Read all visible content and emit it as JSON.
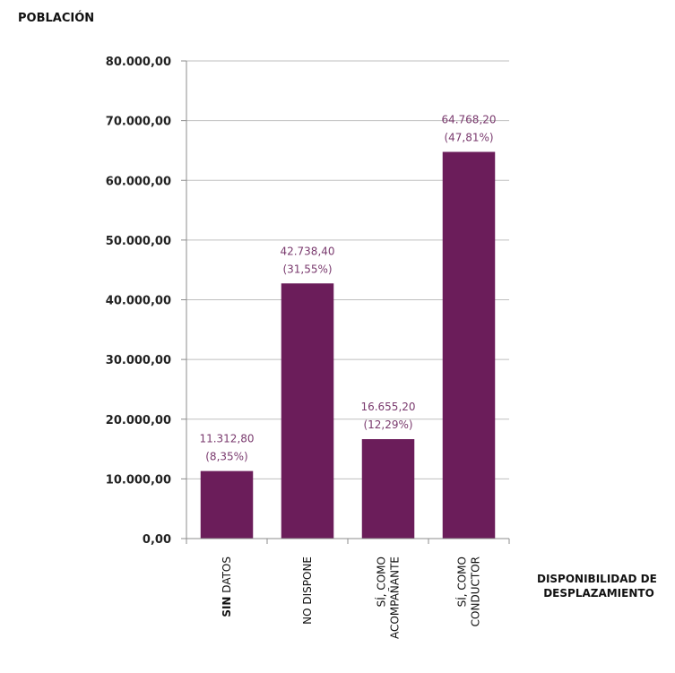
{
  "chart_data": {
    "type": "bar",
    "ylabel": "POBLACIÓN",
    "xlabel_lines": [
      "DISPONIBILIDAD DE",
      "DESPLAZAMIENTO"
    ],
    "categories": [
      {
        "parts": [
          {
            "text": "SIN",
            "bold": true
          },
          {
            "text": " DATOS",
            "bold": false
          }
        ]
      },
      {
        "parts": [
          {
            "text": "NO DISPONE",
            "bold": false
          }
        ]
      },
      {
        "parts": [
          {
            "text": "SÍ, COMO",
            "bold": false
          }
        ],
        "parts2": [
          {
            "text": "ACOMPAÑANTE",
            "bold": false
          }
        ]
      },
      {
        "parts": [
          {
            "text": "SÍ, COMO",
            "bold": false
          }
        ],
        "parts2": [
          {
            "text": "CONDUCTOR",
            "bold": false
          }
        ]
      }
    ],
    "values": [
      11312.8,
      42738.4,
      16655.2,
      64768.2
    ],
    "value_labels": [
      "11.312,80",
      "42.738,40",
      "16.655,20",
      "64.768,20"
    ],
    "percent_labels": [
      "(8,35%)",
      "(31,55%)",
      "(12,29%)",
      "(47,81%)"
    ],
    "ylim": [
      0,
      80000
    ],
    "yticks": [
      0,
      10000,
      20000,
      30000,
      40000,
      50000,
      60000,
      70000,
      80000
    ],
    "ytick_labels": [
      "0,00",
      "10.000,00",
      "20.000,00",
      "30.000,00",
      "40.000,00",
      "50.000,00",
      "60.000,00",
      "70.000,00",
      "80.000,00"
    ],
    "grid": true,
    "colors": {
      "bar": "#6b1d5a",
      "grid": "#bfbfbf",
      "axis": "#8c8c8c",
      "data_label": "#7a3a6e"
    }
  }
}
